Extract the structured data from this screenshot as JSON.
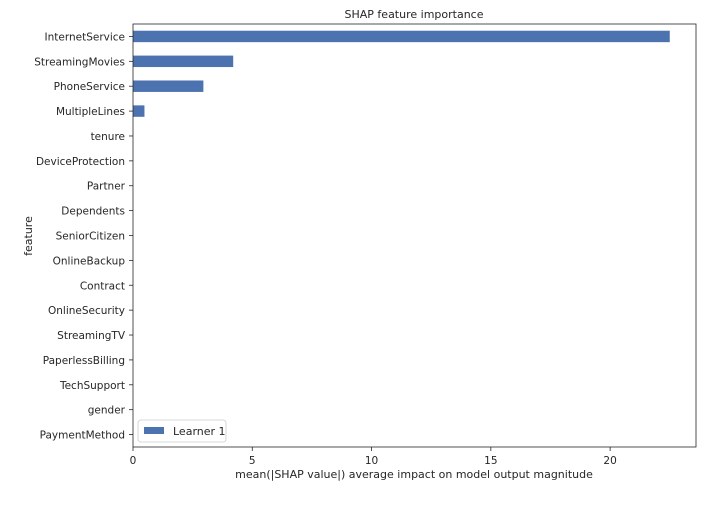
{
  "chart_data": {
    "type": "bar",
    "orientation": "horizontal",
    "title": "SHAP feature importance",
    "xlabel": "mean(|SHAP value|) average impact on model output magnitude",
    "ylabel": "feature",
    "xlim": [
      0,
      23.6
    ],
    "xticks": [
      0,
      5,
      10,
      15,
      20
    ],
    "grid": false,
    "legend_position": "lower-left",
    "categories": [
      "InternetService",
      "StreamingMovies",
      "PhoneService",
      "MultipleLines",
      "tenure",
      "DeviceProtection",
      "Partner",
      "Dependents",
      "SeniorCitizen",
      "OnlineBackup",
      "Contract",
      "OnlineSecurity",
      "StreamingTV",
      "PaperlessBilling",
      "TechSupport",
      "gender",
      "PaymentMethod"
    ],
    "series": [
      {
        "name": "Learner 1",
        "color": "#4c72b0",
        "values": [
          22.5,
          4.2,
          2.95,
          0.48,
          0,
          0,
          0,
          0,
          0,
          0,
          0,
          0,
          0,
          0,
          0,
          0,
          0
        ]
      }
    ]
  }
}
